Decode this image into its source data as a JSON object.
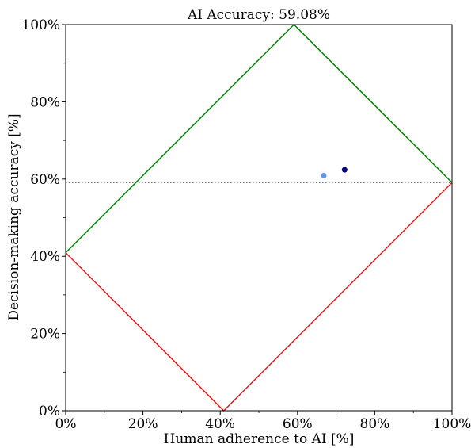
{
  "chart_data": {
    "type": "scatter",
    "title": "AI Accuracy: 59.08%",
    "xlabel": "Human adherence to AI [%]",
    "ylabel": "Decision-making accuracy [%]",
    "xlim": [
      0,
      100
    ],
    "ylim": [
      0,
      100
    ],
    "x_ticks": [
      0,
      20,
      40,
      60,
      80,
      100
    ],
    "x_tick_labels": [
      "0%",
      "20%",
      "40%",
      "60%",
      "80%",
      "100%"
    ],
    "y_ticks": [
      0,
      20,
      40,
      60,
      80,
      100
    ],
    "y_tick_labels": [
      "0%",
      "20%",
      "40%",
      "60%",
      "80%",
      "100%"
    ],
    "minor_ticks": [
      10,
      30,
      50,
      70,
      90
    ],
    "grid": false,
    "reference_line": {
      "y": 59.08,
      "style": "dotted",
      "color": "#555555"
    },
    "upper_bound": {
      "color": "#008000",
      "points": [
        [
          0,
          40.92
        ],
        [
          59.08,
          100
        ],
        [
          100,
          59.08
        ]
      ]
    },
    "lower_bound": {
      "color": "#e31a1c",
      "points": [
        [
          0,
          40.92
        ],
        [
          40.92,
          0
        ],
        [
          100,
          59.08
        ]
      ]
    },
    "points": [
      {
        "x": 66.8,
        "y": 60.9,
        "color": "#6495ed"
      },
      {
        "x": 72.2,
        "y": 62.4,
        "color": "#000080"
      }
    ]
  }
}
